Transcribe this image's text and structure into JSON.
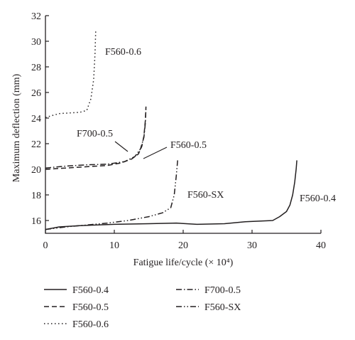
{
  "chart_data": {
    "type": "line",
    "xlabel": "Fatigue life/cycle (× 10⁴)",
    "ylabel": "Maximum deflection (mm)",
    "xlim": [
      0,
      40
    ],
    "ylim": [
      15,
      32
    ],
    "xticks": [
      "0",
      "10",
      "20",
      "30",
      "40"
    ],
    "yticks": [
      "16",
      "18",
      "20",
      "22",
      "24",
      "26",
      "28",
      "30",
      "32"
    ],
    "grid": false,
    "legend_position": "bottom",
    "series": [
      {
        "name": "F560-0.4",
        "dash": "solid",
        "label": "F560-0.4",
        "x": [
          0,
          2,
          5,
          10,
          15,
          19,
          22,
          26,
          29,
          31,
          33,
          34,
          35,
          35.5,
          35.9,
          36.2,
          36.4,
          36.5
        ],
        "y": [
          15.3,
          15.5,
          15.6,
          15.7,
          15.75,
          15.8,
          15.7,
          15.75,
          15.9,
          15.95,
          16.0,
          16.3,
          16.7,
          17.2,
          18.0,
          19.0,
          20.0,
          20.7
        ]
      },
      {
        "name": "F560-0.5",
        "dash": "dashed",
        "label": "F560-0.5",
        "x": [
          0,
          3,
          6,
          9,
          11,
          12.5,
          13.5,
          14.0,
          14.3,
          14.5,
          14.6
        ],
        "y": [
          20.0,
          20.1,
          20.2,
          20.3,
          20.5,
          20.8,
          21.2,
          21.8,
          22.6,
          23.8,
          24.9
        ]
      },
      {
        "name": "F560-0.6",
        "dash": "dotted",
        "label": "F560-0.6",
        "x": [
          0,
          1,
          2,
          3.5,
          5,
          6,
          6.6,
          7.0,
          7.2,
          7.3
        ],
        "y": [
          24.05,
          24.2,
          24.35,
          24.4,
          24.45,
          24.6,
          25.5,
          27.0,
          29.0,
          30.8
        ]
      },
      {
        "name": "F700-0.5",
        "dash": "dash-dot",
        "label": "F700-0.5",
        "x": [
          0,
          3,
          6,
          9,
          11.5,
          13,
          13.8,
          14.3,
          14.5,
          14.6
        ],
        "y": [
          20.1,
          20.25,
          20.35,
          20.4,
          20.6,
          21.0,
          21.6,
          22.5,
          23.6,
          24.8
        ]
      },
      {
        "name": "F560-SX",
        "dash": "dash-dot-dot",
        "label": "F560-SX",
        "x": [
          0,
          3,
          6,
          9,
          12,
          15,
          17,
          18.2,
          18.7,
          19.0,
          19.2
        ],
        "y": [
          15.3,
          15.5,
          15.65,
          15.8,
          16.0,
          16.3,
          16.6,
          17.0,
          18.0,
          19.5,
          20.7
        ]
      }
    ]
  },
  "colors": {
    "ink": "#231f20",
    "background": "#ffffff"
  }
}
